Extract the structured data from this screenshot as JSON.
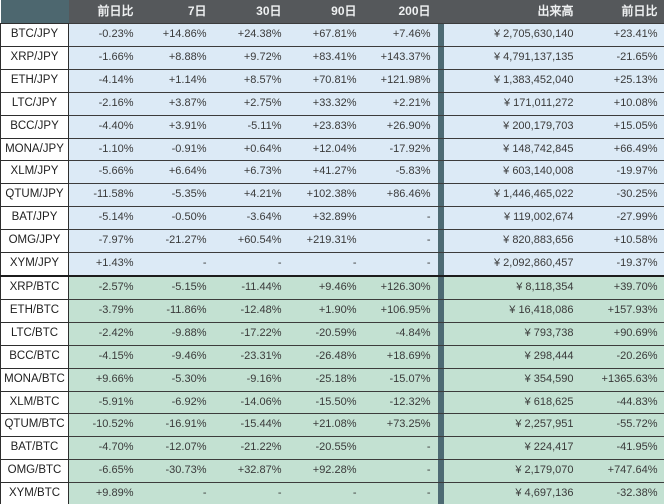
{
  "colors": {
    "header_bg": "#55585b",
    "header_text": "#eef0f1",
    "accent_teal_corner": "#4d676f",
    "accent_teal_separator": "#4d6a73",
    "jpy_row_bg": "#dceaf6",
    "btc_row_bg": "#c3e1d2",
    "label_cell_bg": "#ffffff",
    "value_text": "#3a3a3a",
    "border": "#3c3c3c"
  },
  "chart_data": {
    "type": "table",
    "columns": [
      "前日比",
      "7日",
      "30日",
      "90日",
      "200日",
      "出来高",
      "前日比"
    ],
    "rows": [
      {
        "pair": "BTC/JPY",
        "group": "jpy",
        "values": [
          "-0.23%",
          "+14.86%",
          "+24.38%",
          "+67.81%",
          "+7.46%"
        ],
        "volume": "¥ 2,705,630,140",
        "volume_change": "+23.41%"
      },
      {
        "pair": "XRP/JPY",
        "group": "jpy",
        "values": [
          "-1.66%",
          "+8.88%",
          "+9.72%",
          "+83.41%",
          "+143.37%"
        ],
        "volume": "¥ 4,791,137,135",
        "volume_change": "-21.65%"
      },
      {
        "pair": "ETH/JPY",
        "group": "jpy",
        "values": [
          "-4.14%",
          "+1.14%",
          "+8.57%",
          "+70.81%",
          "+121.98%"
        ],
        "volume": "¥ 1,383,452,040",
        "volume_change": "+25.13%"
      },
      {
        "pair": "LTC/JPY",
        "group": "jpy",
        "values": [
          "-2.16%",
          "+3.87%",
          "+2.75%",
          "+33.32%",
          "+2.21%"
        ],
        "volume": "¥ 171,011,272",
        "volume_change": "+10.08%"
      },
      {
        "pair": "BCC/JPY",
        "group": "jpy",
        "values": [
          "-4.40%",
          "+3.91%",
          "-5.11%",
          "+23.83%",
          "+26.90%"
        ],
        "volume": "¥ 200,179,703",
        "volume_change": "+15.05%"
      },
      {
        "pair": "MONA/JPY",
        "group": "jpy",
        "values": [
          "-1.10%",
          "-0.91%",
          "+0.64%",
          "+12.04%",
          "-17.92%"
        ],
        "volume": "¥ 148,742,845",
        "volume_change": "+66.49%"
      },
      {
        "pair": "XLM/JPY",
        "group": "jpy",
        "values": [
          "-5.66%",
          "+6.64%",
          "+6.73%",
          "+41.27%",
          "-5.83%"
        ],
        "volume": "¥ 603,140,008",
        "volume_change": "-19.97%"
      },
      {
        "pair": "QTUM/JPY",
        "group": "jpy",
        "values": [
          "-11.58%",
          "-5.35%",
          "+4.21%",
          "+102.38%",
          "+86.46%"
        ],
        "volume": "¥ 1,446,465,022",
        "volume_change": "-30.25%"
      },
      {
        "pair": "BAT/JPY",
        "group": "jpy",
        "values": [
          "-5.14%",
          "-0.50%",
          "-3.64%",
          "+32.89%",
          "-"
        ],
        "volume": "¥ 119,002,674",
        "volume_change": "-27.99%"
      },
      {
        "pair": "OMG/JPY",
        "group": "jpy",
        "values": [
          "-7.97%",
          "-21.27%",
          "+60.54%",
          "+219.31%",
          "-"
        ],
        "volume": "¥ 820,883,656",
        "volume_change": "+10.58%"
      },
      {
        "pair": "XYM/JPY",
        "group": "jpy",
        "values": [
          "+1.43%",
          "-",
          "-",
          "-",
          "-"
        ],
        "volume": "¥ 2,092,860,457",
        "volume_change": "-19.37%"
      },
      {
        "pair": "XRP/BTC",
        "group": "btc",
        "values": [
          "-2.57%",
          "-5.15%",
          "-11.44%",
          "+9.46%",
          "+126.30%"
        ],
        "volume": "¥ 8,118,354",
        "volume_change": "+39.70%"
      },
      {
        "pair": "ETH/BTC",
        "group": "btc",
        "values": [
          "-3.79%",
          "-11.86%",
          "-12.48%",
          "+1.90%",
          "+106.95%"
        ],
        "volume": "¥ 16,418,086",
        "volume_change": "+157.93%"
      },
      {
        "pair": "LTC/BTC",
        "group": "btc",
        "values": [
          "-2.42%",
          "-9.88%",
          "-17.22%",
          "-20.59%",
          "-4.84%"
        ],
        "volume": "¥ 793,738",
        "volume_change": "+90.69%"
      },
      {
        "pair": "BCC/BTC",
        "group": "btc",
        "values": [
          "-4.15%",
          "-9.46%",
          "-23.31%",
          "-26.48%",
          "+18.69%"
        ],
        "volume": "¥ 298,444",
        "volume_change": "-20.26%"
      },
      {
        "pair": "MONA/BTC",
        "group": "btc",
        "values": [
          "+9.66%",
          "-5.30%",
          "-9.16%",
          "-25.18%",
          "-15.07%"
        ],
        "volume": "¥ 354,590",
        "volume_change": "+1365.63%"
      },
      {
        "pair": "XLM/BTC",
        "group": "btc",
        "values": [
          "-5.91%",
          "-6.92%",
          "-14.06%",
          "-15.50%",
          "-12.32%"
        ],
        "volume": "¥ 618,625",
        "volume_change": "-44.83%"
      },
      {
        "pair": "QTUM/BTC",
        "group": "btc",
        "values": [
          "-10.52%",
          "-16.91%",
          "-15.44%",
          "+21.08%",
          "+73.25%"
        ],
        "volume": "¥ 2,257,951",
        "volume_change": "-55.72%"
      },
      {
        "pair": "BAT/BTC",
        "group": "btc",
        "values": [
          "-4.70%",
          "-12.07%",
          "-21.22%",
          "-20.55%",
          "-"
        ],
        "volume": "¥ 224,417",
        "volume_change": "-41.95%"
      },
      {
        "pair": "OMG/BTC",
        "group": "btc",
        "values": [
          "-6.65%",
          "-30.73%",
          "+32.87%",
          "+92.28%",
          "-"
        ],
        "volume": "¥ 2,179,070",
        "volume_change": "+747.64%"
      },
      {
        "pair": "XYM/BTC",
        "group": "btc",
        "values": [
          "+9.89%",
          "-",
          "-",
          "-",
          "-"
        ],
        "volume": "¥ 4,697,136",
        "volume_change": "-32.38%"
      }
    ]
  }
}
